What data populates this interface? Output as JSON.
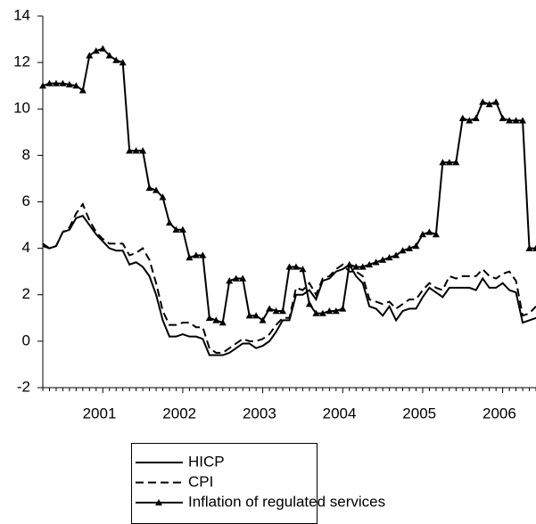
{
  "chart_data": {
    "type": "line",
    "categories": [
      null,
      null,
      null,
      null,
      null,
      null,
      null,
      null,
      null,
      "2001",
      null,
      null,
      null,
      null,
      null,
      null,
      null,
      null,
      null,
      null,
      null,
      "2002",
      null,
      null,
      null,
      null,
      null,
      null,
      null,
      null,
      null,
      null,
      null,
      "2003",
      null,
      null,
      null,
      null,
      null,
      null,
      null,
      null,
      null,
      null,
      null,
      "2004",
      null,
      null,
      null,
      null,
      null,
      null,
      null,
      null,
      null,
      null,
      null,
      "2005",
      null,
      null,
      null,
      null,
      null,
      null,
      null,
      null,
      null,
      null,
      null,
      "2006",
      null,
      null,
      null,
      null,
      null
    ],
    "series": [
      {
        "name": "HICP",
        "color": "#000000",
        "style": "solid",
        "values": [
          4.1,
          4.0,
          4.1,
          4.7,
          4.8,
          5.3,
          5.4,
          5.0,
          4.6,
          4.3,
          4.0,
          3.9,
          3.9,
          3.3,
          3.4,
          3.2,
          2.8,
          2.0,
          0.9,
          0.2,
          0.2,
          0.3,
          0.2,
          0.2,
          0.1,
          -0.6,
          -0.6,
          -0.6,
          -0.5,
          -0.3,
          -0.1,
          -0.1,
          -0.3,
          -0.2,
          0.0,
          0.4,
          0.9,
          0.9,
          2.0,
          2.0,
          2.2,
          1.8,
          2.6,
          2.7,
          3.0,
          3.1,
          3.3,
          2.8,
          2.5,
          1.5,
          1.4,
          1.1,
          1.5,
          0.9,
          1.3,
          1.4,
          1.4,
          1.9,
          2.3,
          2.1,
          1.9,
          2.3,
          2.3,
          2.3,
          2.3,
          2.2,
          2.7,
          2.3,
          2.3,
          2.5,
          2.2,
          2.1,
          0.8,
          0.9,
          1.0
        ]
      },
      {
        "name": "CPI",
        "color": "#000000",
        "style": "dashed",
        "values": [
          4.2,
          4.0,
          4.1,
          4.7,
          4.9,
          5.5,
          5.9,
          5.2,
          4.7,
          4.4,
          4.2,
          4.2,
          4.2,
          3.7,
          3.8,
          4.0,
          3.5,
          2.5,
          1.3,
          0.7,
          0.7,
          0.8,
          0.8,
          0.6,
          0.6,
          -0.3,
          -0.5,
          -0.5,
          -0.3,
          -0.1,
          0.1,
          0.0,
          0.0,
          0.1,
          0.3,
          0.7,
          1.0,
          1.0,
          2.3,
          2.2,
          2.5,
          2.0,
          2.7,
          2.8,
          3.1,
          3.3,
          3.0,
          3.0,
          2.8,
          1.8,
          1.7,
          1.6,
          1.7,
          1.4,
          1.6,
          1.8,
          1.8,
          2.2,
          2.5,
          2.3,
          2.2,
          2.8,
          2.7,
          2.8,
          2.8,
          2.8,
          3.1,
          2.8,
          2.7,
          2.9,
          3.0,
          2.6,
          1.1,
          1.2,
          1.5
        ]
      },
      {
        "name": "Inflation of regulated services",
        "color": "#000000",
        "style": "solid",
        "marker": "triangle",
        "values": [
          11.0,
          11.1,
          11.1,
          11.1,
          11.05,
          11.0,
          10.8,
          12.3,
          12.5,
          12.6,
          12.3,
          12.1,
          12.0,
          8.2,
          8.2,
          8.2,
          6.6,
          6.5,
          6.2,
          5.1,
          4.8,
          4.8,
          3.6,
          3.7,
          3.7,
          1.0,
          0.9,
          0.8,
          2.6,
          2.7,
          2.7,
          1.1,
          1.1,
          0.9,
          1.4,
          1.3,
          1.3,
          3.2,
          3.2,
          3.1,
          1.6,
          1.2,
          1.2,
          1.3,
          1.3,
          1.4,
          3.3,
          3.2,
          3.2,
          3.3,
          3.4,
          3.5,
          3.6,
          3.7,
          3.9,
          4.0,
          4.1,
          4.6,
          4.7,
          4.6,
          7.7,
          7.7,
          7.7,
          9.6,
          9.5,
          9.6,
          10.3,
          10.2,
          10.3,
          9.6,
          9.5,
          9.5,
          9.5,
          4.0,
          4.0
        ]
      }
    ],
    "ylim": [
      -2,
      14
    ],
    "yticks": [
      -2,
      0,
      2,
      4,
      6,
      8,
      10,
      12,
      14
    ],
    "grid": false
  }
}
